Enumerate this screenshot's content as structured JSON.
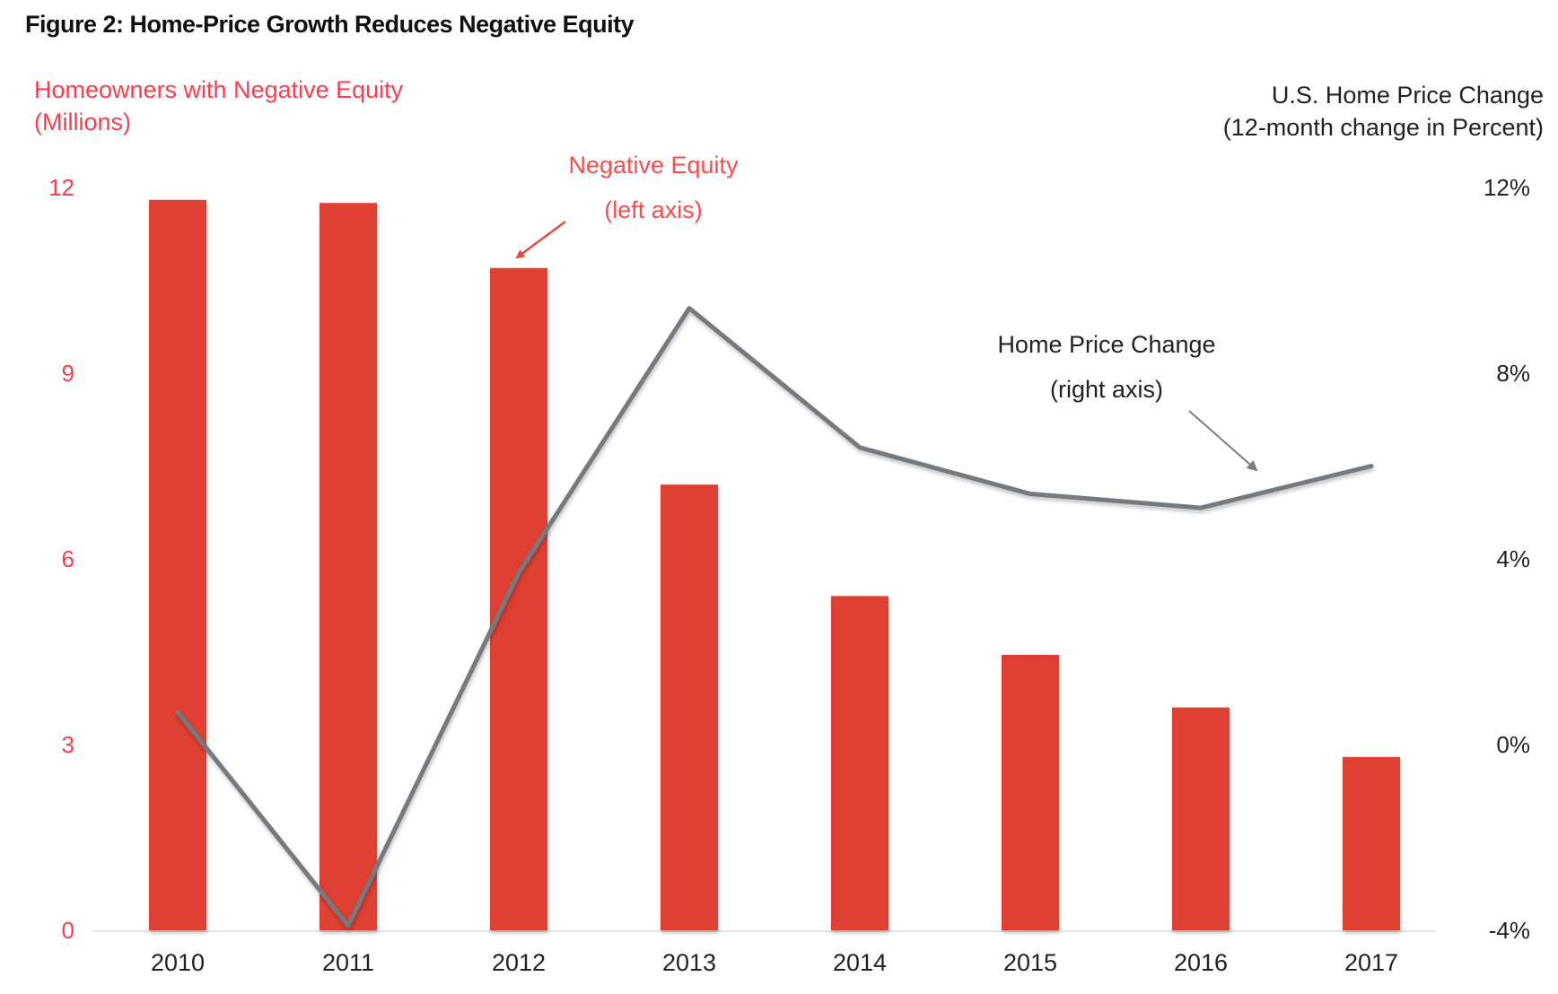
{
  "chart_data": {
    "type": "bar",
    "title": "Figure 2: Home-Price Growth Reduces Negative Equity",
    "categories": [
      "2010",
      "2011",
      "2012",
      "2013",
      "2014",
      "2015",
      "2016",
      "2017"
    ],
    "left_axis": {
      "label_line1": "Homeowners with Negative Equity",
      "label_line2": "(Millions)",
      "ylim": [
        0,
        12
      ],
      "ticks": [
        0,
        3,
        6,
        9,
        12
      ],
      "tick_labels": [
        "0",
        "3",
        "6",
        "9",
        "12"
      ]
    },
    "right_axis": {
      "label_line1": "U.S. Home Price Change",
      "label_line2": "(12-month change in Percent)",
      "ylim": [
        -4,
        12
      ],
      "ticks": [
        -4,
        0,
        4,
        8,
        12
      ],
      "tick_labels": [
        "-4%",
        "0%",
        "4%",
        "8%",
        "12%"
      ]
    },
    "series": [
      {
        "name": "Negative Equity",
        "type": "bar",
        "axis": "left",
        "color": "#de3f30",
        "values": [
          11.8,
          11.75,
          10.7,
          7.2,
          5.4,
          4.45,
          3.6,
          2.8
        ]
      },
      {
        "name": "Home Price Change",
        "type": "line",
        "axis": "right",
        "color": "#757a7e",
        "values": [
          0.7,
          -3.9,
          3.7,
          9.4,
          6.4,
          5.4,
          5.1,
          6.0
        ]
      }
    ],
    "annotations": [
      {
        "series": "Negative Equity",
        "line1": "Negative Equity",
        "line2": "(left axis)",
        "color": "#ff4a4a"
      },
      {
        "series": "Home Price Change",
        "line1": "Home Price Change",
        "line2": "(right axis)",
        "color": "#222222"
      }
    ],
    "grid": false,
    "legend": "none (inline annotations)"
  }
}
